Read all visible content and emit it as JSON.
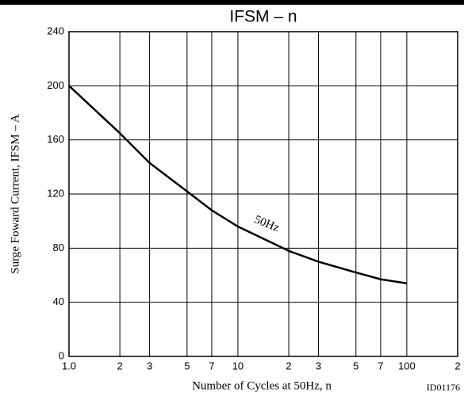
{
  "chart_data": {
    "type": "line",
    "title": "IFSM – n",
    "x_label": "Number of Cycles at 50Hz,  n",
    "y_label": "Surge Foward Current,  IFSM  – A",
    "figure_id": "ID01176",
    "x": [
      1,
      2,
      3,
      5,
      7,
      10,
      20,
      30,
      50,
      70,
      100
    ],
    "series": [
      {
        "name": "50Hz",
        "color": "#000000",
        "values": [
          200,
          165,
          143,
          122,
          108,
          96,
          78,
          70,
          62,
          57,
          54
        ]
      }
    ],
    "xscale": "log",
    "xlim": [
      1,
      200
    ],
    "xticks": [
      {
        "value": 1,
        "label": "1.0"
      },
      2,
      3,
      5,
      7,
      10,
      {
        "value": 20,
        "label": "2"
      },
      {
        "value": 30,
        "label": "3"
      },
      {
        "value": 50,
        "label": "5"
      },
      {
        "value": 70,
        "label": "7"
      },
      100,
      {
        "value": 200,
        "label": "2"
      }
    ],
    "ylim": [
      0,
      240
    ],
    "yticks": [
      0,
      40,
      80,
      120,
      160,
      200,
      240
    ],
    "grid": true
  }
}
